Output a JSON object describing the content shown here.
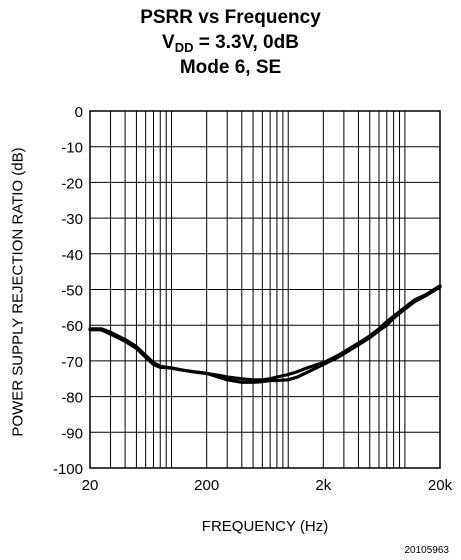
{
  "chart_data": {
    "type": "line",
    "title_line1": "PSRR vs Frequency",
    "title_line2_main": "V",
    "title_line2_sub": "DD",
    "title_line2_rest": " = 3.3V, 0dB",
    "title_line3": "Mode 6, SE",
    "xlabel": "FREQUENCY (Hz)",
    "ylabel": "POWER SUPPLY REJECTION RATIO (dB)",
    "x_scale": "log",
    "xlim": [
      20,
      20000
    ],
    "ylim": [
      -100,
      0
    ],
    "x_ticks": [
      {
        "value": 20,
        "label": "20"
      },
      {
        "value": 200,
        "label": "200"
      },
      {
        "value": 2000,
        "label": "2k"
      },
      {
        "value": 20000,
        "label": "20k"
      }
    ],
    "y_ticks": [
      {
        "value": 0,
        "label": "0"
      },
      {
        "value": -10,
        "label": "-10"
      },
      {
        "value": -20,
        "label": "-20"
      },
      {
        "value": -30,
        "label": "-30"
      },
      {
        "value": -40,
        "label": "-40"
      },
      {
        "value": -50,
        "label": "-50"
      },
      {
        "value": -60,
        "label": "-60"
      },
      {
        "value": -70,
        "label": "-70"
      },
      {
        "value": -80,
        "label": "-80"
      },
      {
        "value": -90,
        "label": "-90"
      },
      {
        "value": -100,
        "label": "-100"
      }
    ],
    "grid": true,
    "series": [
      {
        "color": "#000000",
        "x": [
          20,
          25,
          30,
          40,
          50,
          60,
          70,
          80,
          100,
          120,
          150,
          200,
          250,
          300,
          400,
          500,
          600,
          700,
          800,
          1000,
          1200,
          1500,
          2000,
          2500,
          3000,
          4000,
          5000,
          6000,
          7000,
          8000,
          10000,
          12000,
          15000,
          20000
        ],
        "y": [
          -61,
          -61,
          -62,
          -64,
          -66,
          -68.5,
          -70.5,
          -71.5,
          -72,
          -72.5,
          -73,
          -73.5,
          -74,
          -74.5,
          -75,
          -75.3,
          -75.3,
          -75,
          -74.5,
          -73.8,
          -73,
          -71.8,
          -70.5,
          -69,
          -67.5,
          -65,
          -63,
          -61,
          -59,
          -57.5,
          -55,
          -53,
          -51.5,
          -49
        ]
      },
      {
        "color": "#000000",
        "x": [
          20,
          25,
          30,
          40,
          50,
          60,
          70,
          80,
          100,
          120,
          150,
          200,
          250,
          300,
          400,
          500,
          600,
          700,
          800,
          1000,
          1200,
          1500,
          2000,
          2500,
          3000,
          4000,
          5000,
          6000,
          7000,
          8000,
          10000,
          12000,
          15000,
          20000
        ],
        "y": [
          -61.3,
          -61.3,
          -62.5,
          -64.5,
          -66.5,
          -69,
          -71,
          -71.8,
          -72,
          -72.5,
          -73,
          -73.5,
          -74.5,
          -75.3,
          -76,
          -76,
          -75.8,
          -75.5,
          -75.5,
          -75.3,
          -74.5,
          -73,
          -71,
          -69.5,
          -68,
          -65.5,
          -63.5,
          -61.5,
          -60,
          -58,
          -55.5,
          -53.5,
          -51.8,
          -49.3
        ]
      }
    ]
  },
  "figure_id": "20105963"
}
